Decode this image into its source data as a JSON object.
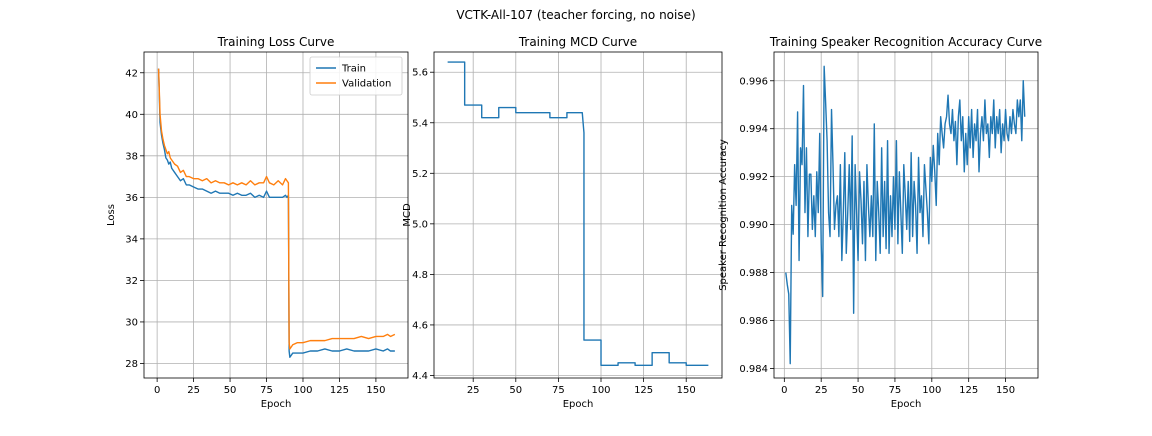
{
  "figure": {
    "suptitle": "VCTK-All-107 (teacher forcing, no noise)"
  },
  "chart_data": [
    {
      "type": "line",
      "title": "Training Loss Curve",
      "xlabel": "Epoch",
      "ylabel": "Loss",
      "xlim": [
        -9,
        172
      ],
      "ylim": [
        27.3,
        43.0
      ],
      "xticks": [
        0,
        25,
        50,
        75,
        100,
        125,
        150
      ],
      "yticks": [
        28,
        30,
        32,
        34,
        36,
        38,
        40,
        42
      ],
      "grid": true,
      "legend": "top-right",
      "series": [
        {
          "name": "Train",
          "color": "#1f77b4",
          "x": [
            1,
            2,
            3,
            4,
            5,
            6,
            7,
            8,
            9,
            10,
            12,
            14,
            16,
            18,
            20,
            22,
            25,
            28,
            31,
            34,
            37,
            40,
            43,
            46,
            49,
            52,
            55,
            58,
            61,
            64,
            67,
            70,
            73,
            75,
            77,
            80,
            83,
            86,
            88,
            89,
            90,
            90.5,
            91,
            93,
            96,
            100,
            105,
            110,
            115,
            120,
            125,
            130,
            135,
            140,
            145,
            150,
            155,
            158,
            160,
            163
          ],
          "y": [
            42.2,
            39.6,
            39.0,
            38.6,
            38.3,
            37.9,
            37.8,
            37.6,
            37.7,
            37.4,
            37.2,
            37.0,
            36.8,
            36.9,
            36.6,
            36.6,
            36.5,
            36.4,
            36.4,
            36.3,
            36.2,
            36.3,
            36.2,
            36.2,
            36.2,
            36.1,
            36.2,
            36.1,
            36.1,
            36.2,
            36.0,
            36.1,
            36.0,
            36.3,
            36.0,
            36.0,
            36.0,
            36.0,
            36.1,
            36.0,
            36.1,
            28.6,
            28.3,
            28.5,
            28.5,
            28.5,
            28.6,
            28.6,
            28.7,
            28.6,
            28.6,
            28.7,
            28.6,
            28.6,
            28.6,
            28.7,
            28.6,
            28.7,
            28.6,
            28.6
          ]
        },
        {
          "name": "Validation",
          "color": "#ff7f0e",
          "x": [
            1,
            2,
            3,
            4,
            5,
            6,
            7,
            8,
            9,
            10,
            12,
            14,
            16,
            18,
            20,
            22,
            25,
            28,
            31,
            34,
            37,
            40,
            43,
            46,
            49,
            52,
            55,
            58,
            61,
            64,
            67,
            70,
            73,
            75,
            77,
            80,
            83,
            86,
            88,
            89,
            90,
            90.5,
            91,
            93,
            96,
            100,
            105,
            110,
            115,
            120,
            125,
            130,
            135,
            140,
            145,
            150,
            155,
            158,
            160,
            163
          ],
          "y": [
            42.2,
            40.0,
            39.2,
            38.8,
            38.5,
            38.3,
            38.1,
            38.2,
            37.9,
            37.8,
            37.6,
            37.5,
            37.2,
            37.3,
            37.0,
            37.0,
            36.9,
            36.9,
            36.8,
            36.9,
            36.7,
            36.8,
            36.7,
            36.7,
            36.6,
            36.7,
            36.6,
            36.7,
            36.6,
            36.8,
            36.6,
            36.7,
            36.7,
            37.0,
            36.7,
            36.6,
            36.8,
            36.6,
            36.9,
            36.8,
            36.7,
            29.0,
            28.7,
            28.9,
            29.0,
            29.0,
            29.1,
            29.1,
            29.1,
            29.2,
            29.2,
            29.2,
            29.2,
            29.3,
            29.2,
            29.3,
            29.3,
            29.4,
            29.3,
            29.4
          ]
        }
      ]
    },
    {
      "type": "line",
      "title": "Training MCD Curve",
      "xlabel": "Epoch",
      "ylabel": "MCD",
      "xlim": [
        2,
        171
      ],
      "ylim": [
        4.39,
        5.68
      ],
      "xticks": [
        25,
        50,
        75,
        100,
        125,
        150
      ],
      "yticks": [
        4.4,
        4.6,
        4.8,
        5.0,
        5.2,
        5.4,
        5.6
      ],
      "grid": true,
      "series": [
        {
          "name": "",
          "color": "#1f77b4",
          "x": [
            10,
            20,
            20,
            30,
            30,
            40,
            40,
            50,
            50,
            70,
            70,
            80,
            80,
            89,
            90,
            90,
            100,
            100,
            110,
            110,
            120,
            120,
            130,
            130,
            140,
            140,
            150,
            150,
            160,
            163
          ],
          "y": [
            5.64,
            5.64,
            5.47,
            5.47,
            5.42,
            5.42,
            5.46,
            5.46,
            5.44,
            5.44,
            5.42,
            5.42,
            5.44,
            5.44,
            5.36,
            4.54,
            4.54,
            4.44,
            4.44,
            4.45,
            4.45,
            4.44,
            4.44,
            4.49,
            4.49,
            4.45,
            4.45,
            4.44,
            4.44,
            4.44
          ]
        }
      ]
    },
    {
      "type": "line",
      "title": "Training Speaker Recognition Accuracy Curve",
      "xlabel": "Epoch",
      "ylabel": "Speaker Recognition Accuracy",
      "xlim": [
        -7,
        172
      ],
      "ylim": [
        0.9836,
        0.9972
      ],
      "xticks": [
        0,
        25,
        50,
        75,
        100,
        125,
        150
      ],
      "yticks": [
        0.984,
        0.986,
        0.988,
        0.99,
        0.992,
        0.994,
        0.996
      ],
      "grid": true,
      "series": [
        {
          "name": "",
          "color": "#1f77b4",
          "x_start": 1,
          "x_step": 1,
          "y": [
            0.988,
            0.9875,
            0.9871,
            0.9842,
            0.9908,
            0.9896,
            0.9925,
            0.9908,
            0.9947,
            0.9885,
            0.9932,
            0.9925,
            0.9958,
            0.9905,
            0.9932,
            0.9895,
            0.9921,
            0.9921,
            0.9898,
            0.9912,
            0.9895,
            0.9922,
            0.9905,
            0.9938,
            0.9892,
            0.987,
            0.9966,
            0.9951,
            0.9935,
            0.9905,
            0.9895,
            0.9948,
            0.9925,
            0.9898,
            0.9908,
            0.9912,
            0.9895,
            0.9925,
            0.9885,
            0.9905,
            0.993,
            0.9888,
            0.9905,
            0.9925,
            0.9898,
            0.9937,
            0.9863,
            0.9925,
            0.9905,
            0.9885,
            0.9922,
            0.991,
            0.9892,
            0.9918,
            0.9885,
            0.9925,
            0.9908,
            0.9895,
            0.9912,
            0.9895,
            0.9942,
            0.9885,
            0.9918,
            0.9905,
            0.9888,
            0.9932,
            0.9895,
            0.9918,
            0.989,
            0.9935,
            0.9888,
            0.9912,
            0.9895,
            0.992,
            0.9898,
            0.9935,
            0.9892,
            0.9922,
            0.9905,
            0.9888,
            0.9925,
            0.9912,
            0.9898,
            0.9918,
            0.9893,
            0.993,
            0.9895,
            0.9918,
            0.9908,
            0.9888,
            0.9928,
            0.9905,
            0.9912,
            0.9895,
            0.9925,
            0.9915,
            0.9905,
            0.9892,
            0.9928,
            0.9918,
            0.9933,
            0.9922,
            0.9908,
            0.9938,
            0.9925,
            0.9945,
            0.9938,
            0.9932,
            0.9942,
            0.9945,
            0.9954,
            0.9942,
            0.9938,
            0.9948,
            0.9935,
            0.9943,
            0.9925,
            0.9945,
            0.9952,
            0.9935,
            0.9945,
            0.9922,
            0.9938,
            0.9925,
            0.9945,
            0.9932,
            0.9948,
            0.9928,
            0.9942,
            0.9935,
            0.9948,
            0.9922,
            0.9938,
            0.9945,
            0.9935,
            0.9952,
            0.9938,
            0.9942,
            0.9928,
            0.9945,
            0.9938,
            0.9952,
            0.9932,
            0.9945,
            0.9938,
            0.9948,
            0.993,
            0.9942,
            0.9935,
            0.9948,
            0.9938,
            0.9935,
            0.9945,
            0.9938,
            0.9948,
            0.9942,
            0.9938,
            0.9952,
            0.9945,
            0.9952,
            0.9935,
            0.996,
            0.9945
          ]
        }
      ]
    }
  ]
}
